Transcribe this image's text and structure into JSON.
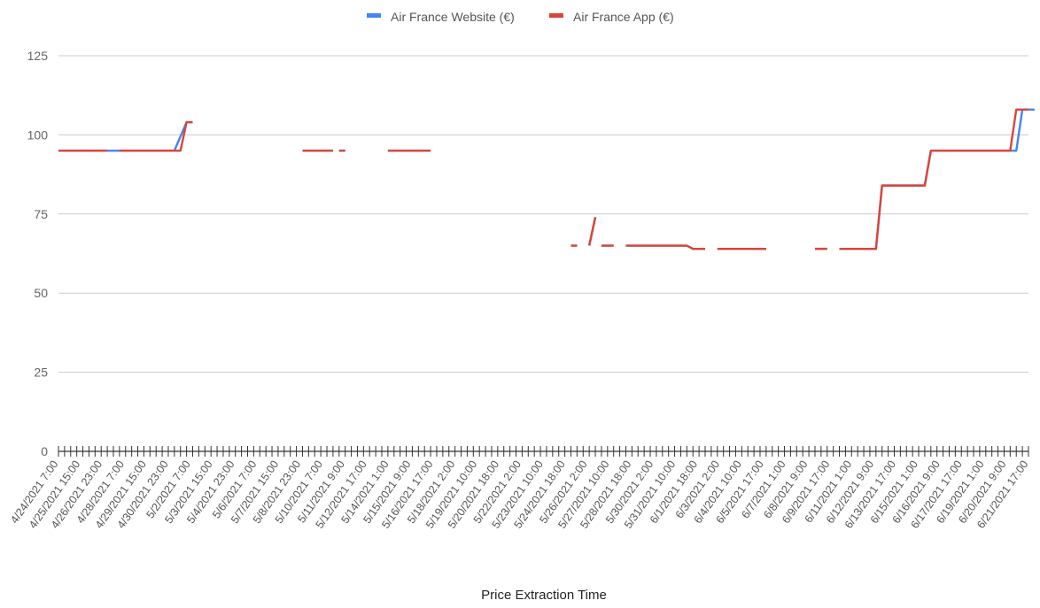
{
  "chart_data": {
    "type": "line",
    "title": "",
    "xlabel": "Price Extraction Time",
    "ylabel": "",
    "ylim": [
      0,
      125
    ],
    "yticks": [
      0,
      25,
      50,
      75,
      100,
      125
    ],
    "grid": true,
    "legend_position": "top",
    "x_tick_labels": [
      "4/24/2021 7:00",
      "4/25/2021 15:00",
      "4/26/2021 23:00",
      "4/28/2021 7:00",
      "4/29/2021 15:00",
      "4/30/2021 23:00",
      "5/2/2021 7:00",
      "5/3/2021 15:00",
      "5/4/2021 23:00",
      "5/6/2021 7:00",
      "5/7/2021 15:00",
      "5/8/2021 23:00",
      "5/10/2021 7:00",
      "5/11/2021 9:00",
      "5/12/2021 17:00",
      "5/14/2021 1:00",
      "5/15/2021 9:00",
      "5/16/2021 17:00",
      "5/18/2021 2:00",
      "5/19/2021 10:00",
      "5/20/2021 18:00",
      "5/22/2021 2:00",
      "5/23/2021 10:00",
      "5/24/2021 18:00",
      "5/26/2021 2:00",
      "5/27/2021 10:00",
      "5/28/2021 18:00",
      "5/30/2021 2:00",
      "5/31/2021 10:00",
      "6/1/2021 18:00",
      "6/3/2021 2:00",
      "6/4/2021 10:00",
      "6/5/2021 17:00",
      "6/7/2021 1:00",
      "6/8/2021 9:00",
      "6/9/2021 17:00",
      "6/11/2021 1:00",
      "6/12/2021 9:00",
      "6/13/2021 17:00",
      "6/15/2021 1:00",
      "6/16/2021 9:00",
      "6/17/2021 17:00",
      "6/19/2021 1:00",
      "6/20/2021 9:00",
      "6/21/2021 17:00"
    ],
    "x_point_count": 160,
    "series": [
      {
        "name": "Air France Website (€)",
        "color": "#4285f4",
        "segments": [
          {
            "points": [
              [
                0,
                95
              ],
              [
                19,
                95
              ],
              [
                21,
                104
              ],
              [
                22,
                104
              ]
            ]
          },
          {
            "points": [
              [
                40,
                95
              ],
              [
                45,
                95
              ]
            ]
          },
          {
            "points": [
              [
                46,
                95
              ],
              [
                47,
                95
              ]
            ]
          },
          {
            "points": [
              [
                54,
                95
              ],
              [
                61,
                95
              ]
            ]
          },
          {
            "points": [
              [
                84,
                65
              ],
              [
                85,
                65
              ]
            ]
          },
          {
            "points": [
              [
                87,
                65
              ],
              [
                88,
                74
              ]
            ]
          },
          {
            "points": [
              [
                89,
                65
              ],
              [
                91,
                65
              ]
            ]
          },
          {
            "points": [
              [
                93,
                65
              ],
              [
                103,
                65
              ],
              [
                104,
                64
              ],
              [
                106,
                64
              ]
            ]
          },
          {
            "points": [
              [
                108,
                64
              ],
              [
                116,
                64
              ]
            ]
          },
          {
            "points": [
              [
                124,
                64
              ],
              [
                126,
                64
              ]
            ]
          },
          {
            "points": [
              [
                128,
                64
              ],
              [
                134,
                64
              ],
              [
                135,
                84
              ],
              [
                142,
                84
              ],
              [
                143,
                95
              ],
              [
                157,
                95
              ],
              [
                158,
                108
              ],
              [
                160,
                108
              ]
            ]
          }
        ]
      },
      {
        "name": "Air France App (€)",
        "color": "#db4437",
        "segments": [
          {
            "points": [
              [
                0,
                95
              ],
              [
                8,
                95
              ]
            ]
          },
          {
            "points": [
              [
                10,
                95
              ],
              [
                20,
                95
              ],
              [
                21,
                104
              ],
              [
                22,
                104
              ]
            ]
          },
          {
            "points": [
              [
                40,
                95
              ],
              [
                45,
                95
              ]
            ]
          },
          {
            "points": [
              [
                46,
                95
              ],
              [
                47,
                95
              ]
            ]
          },
          {
            "points": [
              [
                54,
                95
              ],
              [
                61,
                95
              ]
            ]
          },
          {
            "points": [
              [
                84,
                65
              ],
              [
                85,
                65
              ]
            ]
          },
          {
            "points": [
              [
                87,
                65
              ],
              [
                88,
                74
              ]
            ]
          },
          {
            "points": [
              [
                89,
                65
              ],
              [
                91,
                65
              ]
            ]
          },
          {
            "points": [
              [
                93,
                65
              ],
              [
                103,
                65
              ],
              [
                104,
                64
              ],
              [
                106,
                64
              ]
            ]
          },
          {
            "points": [
              [
                108,
                64
              ],
              [
                116,
                64
              ]
            ]
          },
          {
            "points": [
              [
                124,
                64
              ],
              [
                126,
                64
              ]
            ]
          },
          {
            "points": [
              [
                128,
                64
              ],
              [
                134,
                64
              ],
              [
                135,
                84
              ],
              [
                142,
                84
              ],
              [
                143,
                95
              ],
              [
                156,
                95
              ],
              [
                157,
                108
              ],
              [
                159,
                108
              ]
            ]
          }
        ]
      }
    ]
  }
}
